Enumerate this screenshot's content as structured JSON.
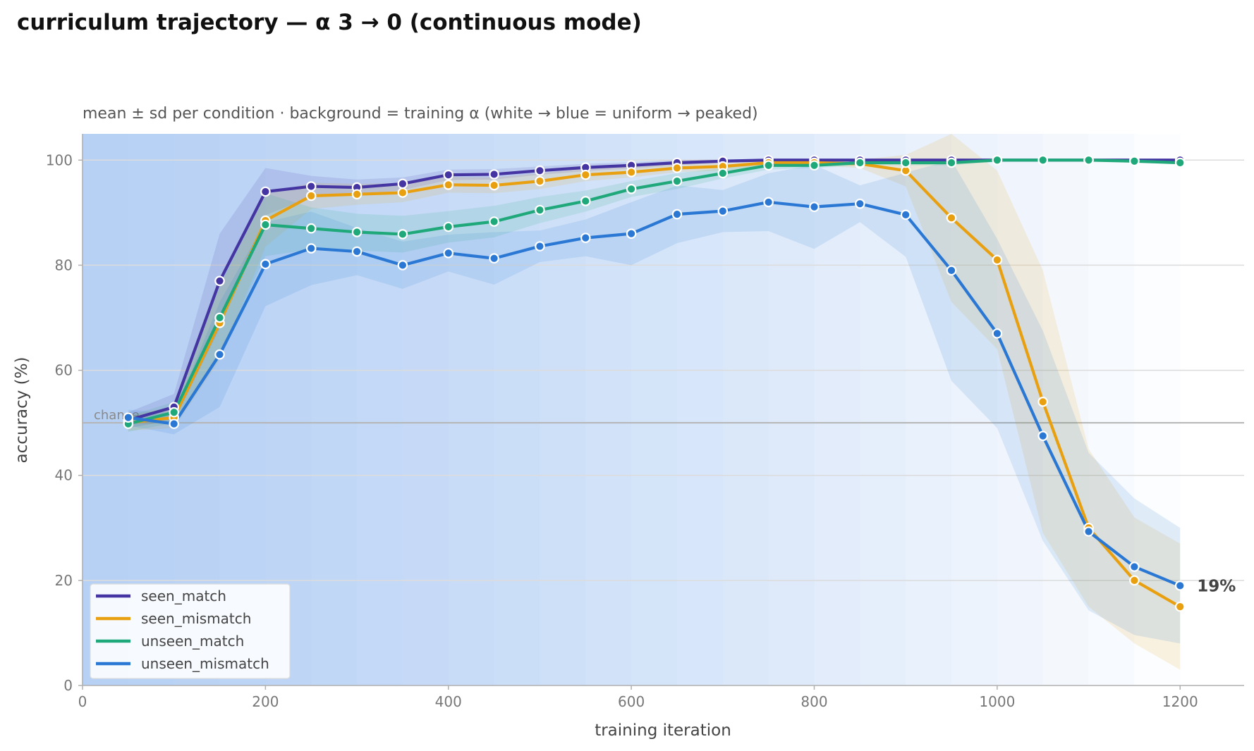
{
  "title": "curriculum trajectory — α 3 → 0 (continuous mode)",
  "subtitle": "mean ± sd per condition · background = training α (white → blue = uniform → peaked)",
  "chart_data": {
    "type": "line",
    "xlabel": "training iteration",
    "ylabel": "accuracy (%)",
    "xlim": [
      0,
      1270
    ],
    "ylim": [
      0,
      105
    ],
    "xticks": [
      0,
      200,
      400,
      600,
      800,
      1000,
      1200
    ],
    "yticks": [
      0,
      20,
      40,
      60,
      80,
      100
    ],
    "grid": "horizontal",
    "legend_position": "bottom-left",
    "x": [
      50,
      100,
      150,
      200,
      250,
      300,
      350,
      400,
      450,
      500,
      550,
      600,
      650,
      700,
      750,
      800,
      850,
      900,
      950,
      1000,
      1050,
      1100,
      1150,
      1200
    ],
    "reference_line": {
      "y": 50,
      "label": "chance",
      "color": "#b5b5b5"
    },
    "end_annotation": {
      "series": "unseen_mismatch",
      "text": "19%"
    },
    "background": {
      "meaning": "training α",
      "alpha_start": 3,
      "alpha_end": 0,
      "color_peaked": "#b7d1f5",
      "color_uniform": "#ffffff"
    },
    "series": [
      {
        "name": "seen_match",
        "color": "#4535a3",
        "values": [
          50.5,
          53,
          77,
          94,
          95,
          94.8,
          95.5,
          97.2,
          97.3,
          98,
          98.6,
          99,
          99.5,
          99.8,
          100,
          100,
          100,
          100,
          100,
          100,
          100,
          100,
          100,
          100
        ],
        "sd": [
          1.5,
          2.5,
          9,
          4.5,
          2,
          1.5,
          1.2,
          1,
          1,
          0.8,
          0.7,
          0.6,
          0.5,
          0.3,
          0.2,
          0.2,
          0.2,
          0.2,
          0.2,
          0.2,
          0.2,
          0.2,
          0.2,
          0.2
        ]
      },
      {
        "name": "seen_mismatch",
        "color": "#e8a010",
        "values": [
          50,
          51,
          69,
          88.5,
          93.2,
          93.5,
          93.8,
          95.3,
          95.2,
          96,
          97.2,
          97.7,
          98.5,
          98.8,
          99.5,
          99.5,
          99.3,
          98,
          89,
          81,
          54,
          30,
          20,
          15
        ],
        "sd": [
          1.5,
          2,
          7,
          5,
          2.5,
          2,
          1.8,
          1.5,
          1.5,
          1.5,
          1.2,
          1,
          0.8,
          0.8,
          0.5,
          0.5,
          0.8,
          3,
          16,
          17,
          25,
          15,
          12,
          12
        ]
      },
      {
        "name": "unseen_match",
        "color": "#1fa87a",
        "values": [
          49.8,
          52,
          70,
          87.7,
          87,
          86.3,
          85.9,
          87.3,
          88.3,
          90.5,
          92.2,
          94.5,
          96,
          97.5,
          99,
          99,
          99.5,
          99.5,
          99.5,
          100,
          100,
          100,
          99.8,
          99.5
        ],
        "sd": [
          1.5,
          2,
          7,
          6,
          4,
          3.5,
          3.5,
          3,
          3,
          2.5,
          2,
          1.5,
          1.5,
          1,
          0.8,
          0.5,
          0.5,
          0.5,
          0.5,
          0.3,
          0.3,
          0.3,
          0.3,
          0.3
        ]
      },
      {
        "name": "unseen_mismatch",
        "color": "#2a78d4",
        "values": [
          51,
          49.8,
          63,
          80.2,
          83.2,
          82.6,
          80,
          82.3,
          81.3,
          83.6,
          85.2,
          86,
          89.7,
          90.3,
          92,
          91.1,
          91.7,
          89.6,
          79,
          67,
          47.5,
          29.3,
          22.6,
          19
        ],
        "sd": [
          1.5,
          2,
          10,
          8,
          7,
          4.5,
          4.5,
          3.5,
          5,
          3,
          3.5,
          6,
          5.5,
          4,
          5.5,
          8,
          3.5,
          8,
          21,
          18,
          20,
          15,
          13,
          11
        ]
      }
    ]
  }
}
